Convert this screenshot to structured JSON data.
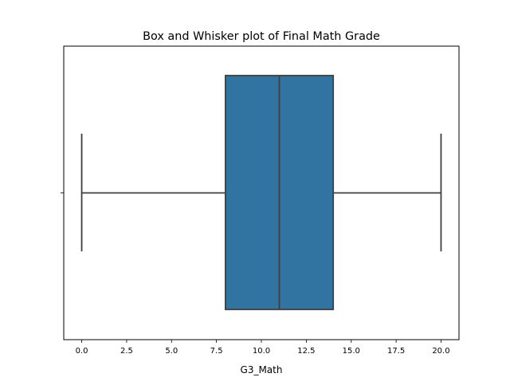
{
  "chart_data": {
    "type": "box",
    "title": "Box and Whisker plot of Final Math Grade",
    "xlabel": "G3_Math",
    "ylabel": "",
    "xlim": [
      -1,
      21
    ],
    "xticks": [
      0.0,
      2.5,
      5.0,
      7.5,
      10.0,
      12.5,
      15.0,
      17.5,
      20.0
    ],
    "xtick_labels": [
      "0.0",
      "2.5",
      "5.0",
      "7.5",
      "10.0",
      "12.5",
      "15.0",
      "17.5",
      "20.0"
    ],
    "box": {
      "whisker_low": 0,
      "q1": 8,
      "median": 11,
      "q3": 14,
      "whisker_high": 20
    },
    "grid": false,
    "legend": "none",
    "box_color": "#3274a1",
    "line_color": "#3f3f3f"
  }
}
